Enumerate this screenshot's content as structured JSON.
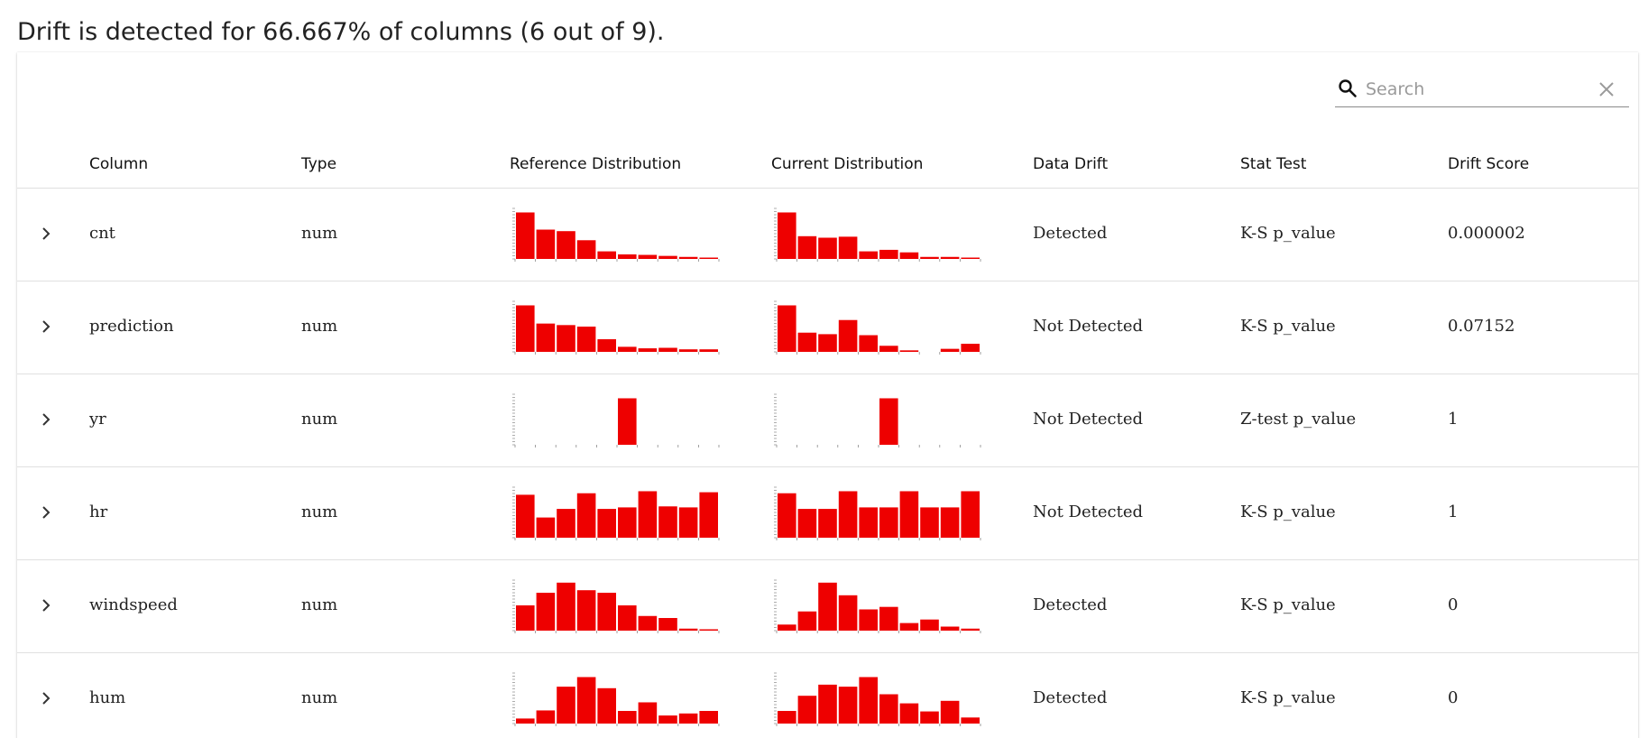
{
  "summary": "Drift is detected for 66.667% of columns (6 out of 9).",
  "search": {
    "placeholder": "Search",
    "value": "",
    "search_icon": "search-icon",
    "clear_icon": "close-icon"
  },
  "colors": {
    "bar": "#ee0000",
    "border": "#e0e0e0",
    "text": "#222222"
  },
  "columns": [
    "Column",
    "Type",
    "Reference Distribution",
    "Current Distribution",
    "Data Drift",
    "Stat Test",
    "Drift Score"
  ],
  "rows": [
    {
      "column": "cnt",
      "type": "num",
      "data_drift": "Detected",
      "stat_test": "K-S p_value",
      "drift_score": "0.000002",
      "reference": [
        0.92,
        0.58,
        0.55,
        0.37,
        0.15,
        0.09,
        0.08,
        0.06,
        0.04,
        0.02
      ],
      "current": [
        0.92,
        0.45,
        0.42,
        0.44,
        0.15,
        0.18,
        0.13,
        0.04,
        0.04,
        0.02
      ]
    },
    {
      "column": "prediction",
      "type": "num",
      "data_drift": "Not Detected",
      "stat_test": "K-S p_value",
      "drift_score": "0.07152",
      "reference": [
        0.92,
        0.56,
        0.53,
        0.5,
        0.25,
        0.1,
        0.07,
        0.08,
        0.05,
        0.05
      ],
      "current": [
        0.92,
        0.38,
        0.35,
        0.63,
        0.33,
        0.12,
        0.03,
        0.0,
        0.06,
        0.16
      ]
    },
    {
      "column": "yr",
      "type": "num",
      "data_drift": "Not Detected",
      "stat_test": "Z-test p_value",
      "drift_score": "1",
      "reference": [
        0,
        0,
        0,
        0,
        0,
        0.92,
        0,
        0,
        0,
        0
      ],
      "current": [
        0,
        0,
        0,
        0,
        0,
        0.92,
        0,
        0,
        0,
        0
      ]
    },
    {
      "column": "hr",
      "type": "num",
      "data_drift": "Not Detected",
      "stat_test": "K-S p_value",
      "drift_score": "1",
      "reference": [
        0.85,
        0.4,
        0.57,
        0.88,
        0.57,
        0.6,
        0.92,
        0.62,
        0.6,
        0.9
      ],
      "current": [
        0.88,
        0.57,
        0.57,
        0.92,
        0.6,
        0.6,
        0.92,
        0.6,
        0.6,
        0.92
      ]
    },
    {
      "column": "windspeed",
      "type": "num",
      "data_drift": "Detected",
      "stat_test": "K-S p_value",
      "drift_score": "0",
      "reference": [
        0.5,
        0.75,
        0.95,
        0.8,
        0.75,
        0.5,
        0.29,
        0.25,
        0.04,
        0.02
      ],
      "current": [
        0.12,
        0.38,
        0.95,
        0.7,
        0.42,
        0.47,
        0.15,
        0.22,
        0.08,
        0.04
      ]
    },
    {
      "column": "hum",
      "type": "num",
      "data_drift": "Detected",
      "stat_test": "K-S p_value",
      "drift_score": "0",
      "reference": [
        0.1,
        0.26,
        0.73,
        0.92,
        0.7,
        0.25,
        0.42,
        0.16,
        0.2,
        0.25
      ],
      "current": [
        0.25,
        0.55,
        0.77,
        0.73,
        0.92,
        0.58,
        0.4,
        0.24,
        0.45,
        0.12
      ]
    }
  ]
}
